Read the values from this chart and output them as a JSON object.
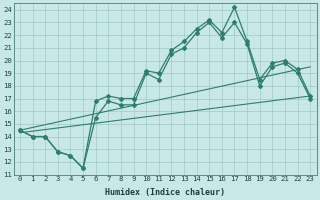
{
  "bg_color": "#c8e8e8",
  "grid_color": "#a0c8c8",
  "line_color": "#2e7d6e",
  "xlabel": "Humidex (Indice chaleur)",
  "xlim": [
    -0.5,
    23.5
  ],
  "ylim": [
    11,
    24.5
  ],
  "yticks": [
    11,
    12,
    13,
    14,
    15,
    16,
    17,
    18,
    19,
    20,
    21,
    22,
    23,
    24
  ],
  "xticks": [
    0,
    1,
    2,
    3,
    4,
    5,
    6,
    7,
    8,
    9,
    10,
    11,
    12,
    13,
    14,
    15,
    16,
    17,
    18,
    19,
    20,
    21,
    22,
    23
  ],
  "main_line_x": [
    0,
    1,
    2,
    3,
    4,
    5,
    6,
    7,
    8,
    9,
    10,
    11,
    12,
    13,
    14,
    15,
    16,
    17,
    18,
    19,
    20,
    21,
    22,
    23
  ],
  "main_line_y": [
    14.5,
    14.0,
    14.0,
    12.8,
    12.5,
    11.5,
    16.8,
    17.2,
    17.0,
    17.0,
    19.2,
    19.0,
    20.8,
    21.5,
    22.5,
    23.2,
    22.2,
    24.2,
    21.5,
    18.5,
    19.8,
    20.0,
    19.3,
    17.2
  ],
  "second_line_x": [
    0,
    1,
    2,
    3,
    4,
    5,
    6,
    7,
    8,
    9,
    10,
    11,
    12,
    13,
    14,
    15,
    16,
    17,
    18,
    19,
    20,
    21,
    22,
    23
  ],
  "second_line_y": [
    14.5,
    14.0,
    14.0,
    12.8,
    12.5,
    11.5,
    15.5,
    16.8,
    16.5,
    16.5,
    19.0,
    18.5,
    20.5,
    21.0,
    22.2,
    23.0,
    21.8,
    23.0,
    21.3,
    18.0,
    19.5,
    19.8,
    19.0,
    17.0
  ],
  "trend1_x": [
    0,
    23
  ],
  "trend1_y": [
    14.3,
    17.2
  ],
  "trend2_x": [
    0,
    23
  ],
  "trend2_y": [
    14.5,
    19.5
  ]
}
